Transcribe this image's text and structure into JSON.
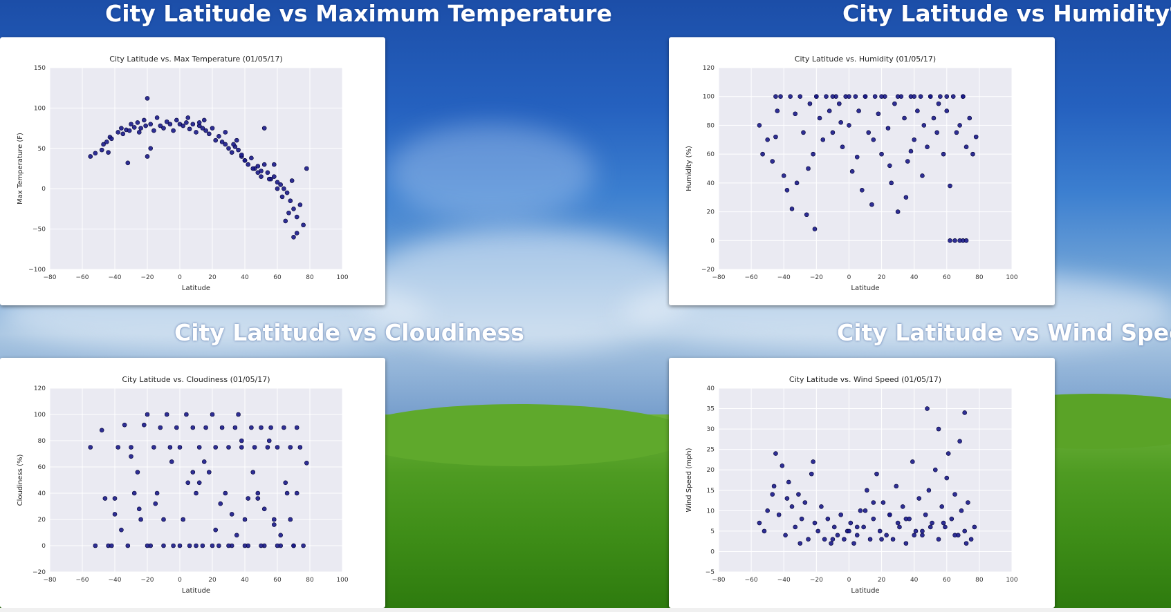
{
  "headings": {
    "temp": "City Latitude vs Maximum Temperature",
    "humidity": "City Latitude vs Humidity%",
    "cloud": "City Latitude vs Cloudiness",
    "wind": "City Latitude vs Wind Speed"
  },
  "chart_data": [
    {
      "type": "scatter",
      "title": "City Latitude vs. Max Temperature (01/05/17)",
      "xlabel": "Latitude",
      "ylabel": "Max Temperature (F)",
      "xlim": [
        -80,
        100
      ],
      "ylim": [
        -100,
        150
      ],
      "xticks": [
        "−80",
        "−60",
        "−40",
        "−20",
        "0",
        "20",
        "40",
        "60",
        "80",
        "100"
      ],
      "yticks": [
        "−100",
        "−50",
        "0",
        "50",
        "100",
        "150"
      ],
      "grid": true,
      "point_color": "#1a1a8a",
      "x": [
        -55,
        -52,
        -48,
        -47,
        -45,
        -43,
        -42,
        -38,
        -36,
        -35,
        -33,
        -31,
        -30,
        -28,
        -26,
        -25,
        -24,
        -22,
        -21,
        -20,
        -18,
        -16,
        -14,
        -12,
        -10,
        -8,
        -6,
        -4,
        -2,
        0,
        2,
        4,
        6,
        8,
        10,
        12,
        14,
        16,
        18,
        20,
        22,
        24,
        26,
        28,
        30,
        32,
        34,
        36,
        38,
        40,
        42,
        44,
        46,
        48,
        50,
        52,
        54,
        56,
        58,
        60,
        62,
        64,
        66,
        68,
        70,
        72,
        74,
        76,
        78,
        -20,
        5,
        15,
        35,
        50,
        58,
        63,
        67,
        70,
        -44,
        -32,
        -18,
        12,
        28,
        45,
        55,
        65,
        72,
        40,
        33,
        48,
        60,
        69,
        52,
        38
      ],
      "y": [
        40,
        44,
        48,
        55,
        58,
        64,
        62,
        70,
        75,
        68,
        73,
        72,
        80,
        76,
        82,
        70,
        75,
        85,
        78,
        112,
        80,
        72,
        88,
        78,
        75,
        83,
        80,
        72,
        85,
        80,
        78,
        82,
        74,
        80,
        70,
        78,
        75,
        72,
        68,
        75,
        60,
        65,
        58,
        55,
        50,
        45,
        52,
        48,
        40,
        35,
        30,
        38,
        25,
        28,
        22,
        30,
        20,
        12,
        15,
        8,
        5,
        0,
        -5,
        -15,
        -25,
        -35,
        -20,
        -45,
        25,
        40,
        88,
        85,
        60,
        15,
        30,
        -10,
        -30,
        -60,
        45,
        32,
        50,
        82,
        70,
        25,
        12,
        -40,
        -55,
        35,
        55,
        20,
        0,
        10,
        75,
        42
      ]
    },
    {
      "type": "scatter",
      "title": "City Latitude vs. Humidity (01/05/17)",
      "xlabel": "Latitude",
      "ylabel": "Humidity (%)",
      "xlim": [
        -80,
        100
      ],
      "ylim": [
        -20,
        120
      ],
      "xticks": [
        "−80",
        "−60",
        "−40",
        "−20",
        "0",
        "20",
        "40",
        "60",
        "80",
        "100"
      ],
      "yticks": [
        "−20",
        "0",
        "20",
        "40",
        "60",
        "80",
        "100",
        "120"
      ],
      "grid": true,
      "point_color": "#1a1a8a",
      "x": [
        -55,
        -53,
        -50,
        -47,
        -45,
        -44,
        -42,
        -40,
        -38,
        -36,
        -35,
        -33,
        -32,
        -30,
        -28,
        -26,
        -24,
        -22,
        -21,
        -20,
        -18,
        -16,
        -14,
        -12,
        -10,
        -8,
        -6,
        -4,
        -2,
        0,
        2,
        4,
        6,
        8,
        10,
        12,
        14,
        16,
        18,
        20,
        22,
        24,
        26,
        28,
        30,
        32,
        34,
        36,
        38,
        40,
        42,
        44,
        46,
        48,
        50,
        52,
        54,
        56,
        58,
        60,
        62,
        64,
        66,
        68,
        70,
        72,
        74,
        76,
        78,
        -45,
        -20,
        -10,
        0,
        10,
        20,
        30,
        40,
        50,
        60,
        70,
        62,
        65,
        68,
        70,
        72,
        -25,
        5,
        25,
        35,
        45,
        55,
        15,
        -5,
        38
      ],
      "y": [
        80,
        60,
        70,
        55,
        72,
        90,
        100,
        45,
        35,
        100,
        22,
        88,
        40,
        100,
        75,
        18,
        95,
        60,
        8,
        100,
        85,
        70,
        100,
        90,
        75,
        100,
        95,
        65,
        100,
        80,
        48,
        100,
        90,
        35,
        100,
        75,
        25,
        100,
        88,
        60,
        100,
        78,
        40,
        95,
        20,
        100,
        85,
        55,
        100,
        70,
        90,
        100,
        80,
        65,
        100,
        85,
        75,
        100,
        60,
        90,
        38,
        100,
        75,
        80,
        100,
        65,
        85,
        60,
        72,
        100,
        100,
        100,
        100,
        100,
        100,
        100,
        100,
        100,
        100,
        100,
        0,
        0,
        0,
        0,
        0,
        50,
        58,
        52,
        30,
        45,
        95,
        70,
        82,
        62
      ]
    },
    {
      "type": "scatter",
      "title": "City Latitude vs. Cloudiness (01/05/17)",
      "xlabel": "Latitude",
      "ylabel": "Cloudiness (%)",
      "xlim": [
        -80,
        100
      ],
      "ylim": [
        -20,
        120
      ],
      "xticks": [
        "−80",
        "−60",
        "−40",
        "−20",
        "0",
        "20",
        "40",
        "60",
        "80",
        "100"
      ],
      "yticks": [
        "−20",
        "0",
        "20",
        "40",
        "60",
        "80",
        "100",
        "120"
      ],
      "grid": true,
      "point_color": "#1a1a8a",
      "x": [
        -55,
        -52,
        -48,
        -46,
        -44,
        -42,
        -40,
        -38,
        -36,
        -34,
        -32,
        -30,
        -28,
        -26,
        -24,
        -22,
        -20,
        -18,
        -16,
        -14,
        -12,
        -10,
        -8,
        -6,
        -4,
        -2,
        0,
        2,
        4,
        6,
        8,
        10,
        12,
        14,
        16,
        18,
        20,
        22,
        24,
        26,
        28,
        30,
        32,
        34,
        36,
        38,
        40,
        42,
        44,
        46,
        48,
        50,
        52,
        54,
        56,
        58,
        60,
        62,
        64,
        66,
        68,
        70,
        72,
        74,
        76,
        78,
        -20,
        -10,
        0,
        10,
        20,
        30,
        40,
        50,
        60,
        70,
        5,
        15,
        25,
        35,
        45,
        55,
        65,
        -30,
        -15,
        8,
        32,
        48,
        62,
        22,
        -5,
        42,
        58,
        72,
        -25,
        12,
        38,
        52,
        68,
        -40
      ],
      "y": [
        75,
        0,
        88,
        36,
        0,
        0,
        24,
        75,
        12,
        92,
        0,
        75,
        40,
        56,
        20,
        92,
        100,
        0,
        75,
        40,
        90,
        20,
        100,
        75,
        0,
        90,
        75,
        20,
        100,
        0,
        90,
        40,
        75,
        0,
        90,
        56,
        100,
        75,
        0,
        90,
        40,
        75,
        0,
        90,
        100,
        75,
        20,
        0,
        90,
        75,
        36,
        90,
        0,
        75,
        90,
        20,
        75,
        0,
        90,
        40,
        75,
        0,
        90,
        75,
        0,
        63,
        0,
        0,
        0,
        0,
        0,
        0,
        0,
        0,
        0,
        0,
        48,
        64,
        32,
        8,
        56,
        80,
        48,
        68,
        32,
        56,
        24,
        40,
        8,
        12,
        64,
        36,
        16,
        40,
        28,
        48,
        80,
        28,
        20,
        36
      ]
    },
    {
      "type": "scatter",
      "title": "City Latitude vs. Wind Speed (01/05/17)",
      "xlabel": "Latitude",
      "ylabel": "Wind Speed (mph)",
      "xlim": [
        -80,
        100
      ],
      "ylim": [
        -5,
        40
      ],
      "xticks": [
        "−80",
        "−60",
        "−40",
        "−20",
        "0",
        "20",
        "40",
        "60",
        "80",
        "100"
      ],
      "yticks": [
        "−5",
        "0",
        "5",
        "10",
        "15",
        "20",
        "25",
        "30",
        "35",
        "40"
      ],
      "grid": true,
      "point_color": "#1a1a8a",
      "x": [
        -55,
        -52,
        -50,
        -47,
        -45,
        -43,
        -41,
        -39,
        -37,
        -35,
        -33,
        -31,
        -29,
        -27,
        -25,
        -23,
        -21,
        -19,
        -17,
        -15,
        -13,
        -11,
        -9,
        -7,
        -5,
        -3,
        -1,
        1,
        3,
        5,
        7,
        9,
        11,
        13,
        15,
        17,
        19,
        21,
        23,
        25,
        27,
        29,
        31,
        33,
        35,
        37,
        39,
        41,
        43,
        45,
        47,
        49,
        51,
        53,
        55,
        57,
        59,
        61,
        63,
        65,
        67,
        69,
        71,
        73,
        75,
        77,
        -46,
        -22,
        48,
        71,
        55,
        68,
        10,
        30,
        40,
        60,
        -30,
        0,
        20,
        50,
        65,
        35,
        15,
        -10,
        5,
        25,
        45,
        58,
        72,
        -38
      ],
      "y": [
        7,
        5,
        10,
        14,
        24,
        9,
        21,
        4,
        17,
        11,
        6,
        14,
        8,
        12,
        3,
        19,
        7,
        5,
        11,
        3,
        8,
        2,
        6,
        4,
        9,
        3,
        5,
        7,
        2,
        4,
        10,
        6,
        15,
        3,
        8,
        19,
        5,
        12,
        4,
        9,
        3,
        16,
        6,
        11,
        2,
        8,
        22,
        5,
        13,
        4,
        9,
        15,
        7,
        20,
        3,
        11,
        6,
        24,
        8,
        14,
        4,
        10,
        5,
        12,
        3,
        6,
        16,
        22,
        35,
        34,
        30,
        27,
        10,
        7,
        4,
        18,
        2,
        5,
        3,
        6,
        4,
        8,
        12,
        3,
        6,
        9,
        5,
        7,
        2,
        13
      ]
    }
  ]
}
